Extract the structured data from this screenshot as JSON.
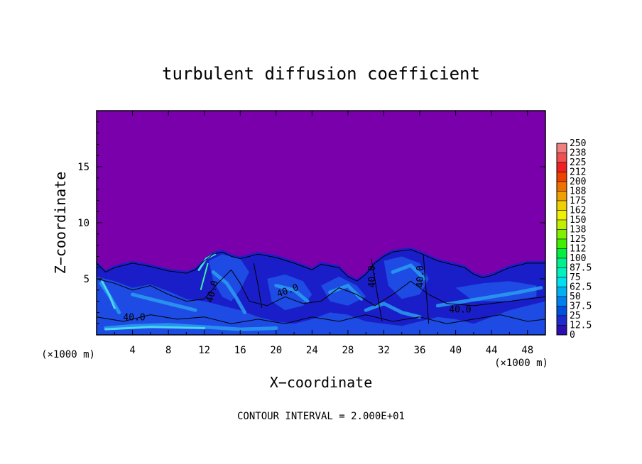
{
  "colors": {
    "background": "#7a00ac",
    "turbulent_dark": "#1a1ec8",
    "turbulent_mid": "#1e50e6",
    "turbulent_light": "#2a9cf0",
    "turbulent_cyan": "#4ad8f0",
    "turbulent_green": "#40f0a0",
    "contour": "#000000"
  },
  "chart_data": {
    "type": "heatmap",
    "title": "turbulent diffusion coefficient",
    "xlabel": "X−coordinate",
    "ylabel": "Z−coordinate",
    "x_unit_left": "(×1000 m)",
    "x_unit_right": "(×1000 m)",
    "xlim": [
      0,
      50
    ],
    "ylim": [
      0,
      20
    ],
    "x_ticks": [
      4,
      8,
      12,
      16,
      20,
      24,
      28,
      32,
      36,
      40,
      44,
      48
    ],
    "y_ticks": [
      5,
      10,
      15
    ],
    "colorbar": {
      "labels": [
        "250",
        "238",
        "225",
        "212",
        "200",
        "188",
        "175",
        "162",
        "150",
        "138",
        "125",
        "112",
        "100",
        "87.5",
        "75",
        "62.5",
        "50",
        "37.5",
        "25",
        "12.5",
        "0"
      ],
      "colors": [
        "#f08080",
        "#f05050",
        "#f02020",
        "#f04000",
        "#f07000",
        "#f0a000",
        "#f0d000",
        "#f0f000",
        "#c0f000",
        "#80f000",
        "#40f000",
        "#00f040",
        "#00f090",
        "#00f0c0",
        "#00e0f0",
        "#00b0f0",
        "#0080f0",
        "#0050e0",
        "#1e2ad0",
        "#2a10b0",
        "#7a00ac"
      ]
    },
    "contour_labels": [
      "40.0",
      "40.0",
      "40.0",
      "40.0",
      "40.0",
      "40.0"
    ],
    "contour_interval": "CONTOUR INTERVAL = 2.000E+01"
  }
}
